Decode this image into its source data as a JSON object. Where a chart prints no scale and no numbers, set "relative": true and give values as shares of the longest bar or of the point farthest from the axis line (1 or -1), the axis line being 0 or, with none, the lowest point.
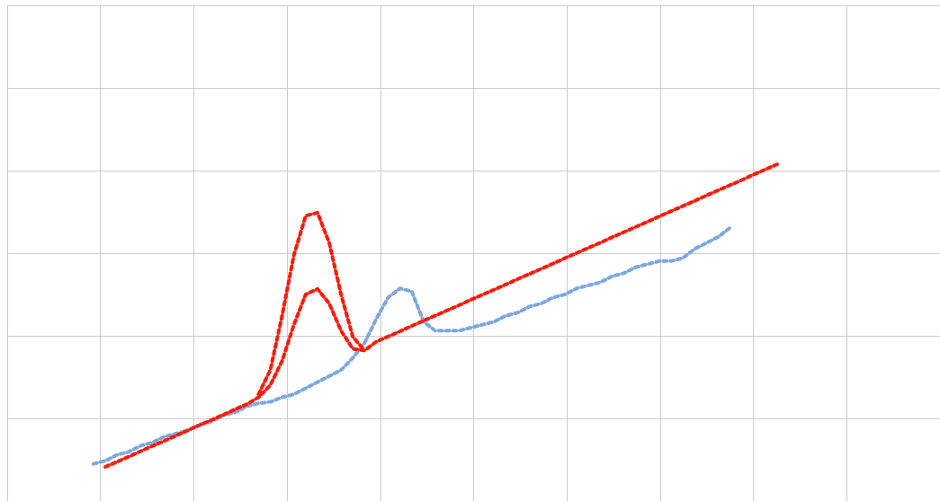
{
  "chart_data": {
    "type": "line",
    "relative": true,
    "grid": true,
    "marker": "none",
    "line_style": "dotted",
    "categories": [
      null,
      null,
      null,
      null,
      null,
      null,
      null,
      null,
      null,
      null,
      null,
      null,
      null,
      null,
      null,
      null,
      null,
      null,
      null,
      null,
      null,
      null,
      null,
      null,
      null,
      null,
      null,
      null,
      null,
      null,
      null,
      null,
      null,
      null,
      null,
      null,
      null,
      null,
      null,
      null,
      null,
      null,
      null,
      null,
      null,
      null,
      null,
      null,
      null,
      null,
      null,
      null,
      null,
      null,
      null,
      null,
      null,
      null,
      null,
      null
    ],
    "series": [
      {
        "color": "#7da7e0",
        "values": [
          0.01,
          0.02,
          0.04,
          0.05,
          0.07,
          0.08,
          0.1,
          0.11,
          0.12,
          0.14,
          0.15,
          0.17,
          0.18,
          0.2,
          0.21,
          0.215,
          0.23,
          0.24,
          0.26,
          0.28,
          0.3,
          0.32,
          0.36,
          0.41,
          0.49,
          0.56,
          0.59,
          0.58,
          0.48,
          0.45,
          0.45,
          0.45,
          0.46,
          0.47,
          0.48,
          0.5,
          0.51,
          0.53,
          0.54,
          0.56,
          0.57,
          0.59,
          0.6,
          0.61,
          0.63,
          0.64,
          0.66,
          0.67,
          0.68,
          0.68,
          0.69,
          0.72,
          0.74,
          0.76,
          0.79,
          null,
          null,
          null,
          null,
          null
        ]
      },
      {
        "color": "#ff1a0a",
        "values": [
          null,
          0,
          0.017,
          0.034,
          0.052,
          0.069,
          0.086,
          0.103,
          0.121,
          0.138,
          0.155,
          0.172,
          0.19,
          0.207,
          0.23,
          0.27,
          0.35,
          0.47,
          0.57,
          0.588,
          0.54,
          0.45,
          0.39,
          0.385,
          0.414,
          0.431,
          0.448,
          0.466,
          0.483,
          0.5,
          0.517,
          0.534,
          0.552,
          0.569,
          0.586,
          0.603,
          0.621,
          0.638,
          0.655,
          0.672,
          0.69,
          0.707,
          0.724,
          0.741,
          0.759,
          0.776,
          0.793,
          0.81,
          0.828,
          0.845,
          0.862,
          0.879,
          0.897,
          0.914,
          0.931,
          0.948,
          0.966,
          0.983,
          1,
          null
        ]
      },
      {
        "color": "#ff1a0a",
        "values": [
          null,
          null,
          null,
          null,
          null,
          null,
          null,
          null,
          null,
          null,
          null,
          null,
          null,
          null,
          0.24,
          0.32,
          0.5,
          0.7,
          0.83,
          0.84,
          0.74,
          0.57,
          0.43,
          0.385,
          null,
          null,
          null,
          null,
          null,
          null,
          null,
          null,
          null,
          null,
          null,
          null,
          null,
          null,
          null,
          null,
          null,
          null,
          null,
          null,
          null,
          null,
          null,
          null,
          null,
          null,
          null,
          null,
          null,
          null,
          null,
          null,
          null,
          null,
          null,
          null
        ]
      }
    ]
  }
}
